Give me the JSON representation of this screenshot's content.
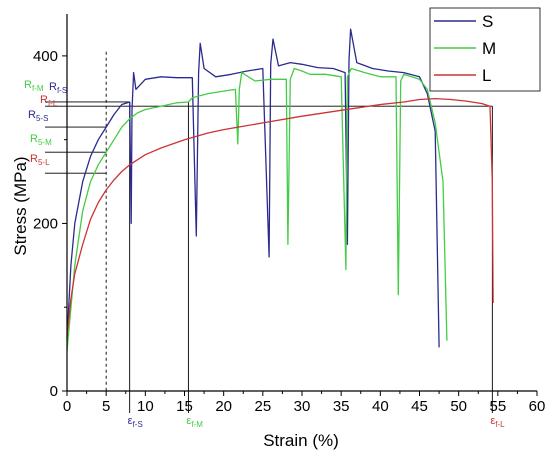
{
  "chart_data": {
    "type": "line",
    "xlabel": "Strain (%)",
    "ylabel": "Stress (MPa)",
    "xlim": [
      0,
      60
    ],
    "ylim": [
      0,
      450
    ],
    "x_ticks": [
      0,
      5,
      10,
      15,
      20,
      25,
      30,
      35,
      40,
      45,
      50,
      55,
      60
    ],
    "y_ticks": [
      0,
      200,
      400
    ],
    "legend_position": "top-right",
    "grid": false,
    "reference_line": {
      "x": 5,
      "style": "dashed"
    },
    "series": [
      {
        "name": "S",
        "color": "#2b2b8f",
        "points": [
          [
            0,
            62
          ],
          [
            0.5,
            150
          ],
          [
            1,
            200
          ],
          [
            2,
            250
          ],
          [
            3,
            280
          ],
          [
            4,
            300
          ],
          [
            5,
            315
          ],
          [
            6,
            330
          ],
          [
            7,
            342
          ],
          [
            8,
            345
          ],
          [
            8.2,
            200
          ],
          [
            8.3,
            335
          ],
          [
            8.5,
            380
          ],
          [
            8.8,
            360
          ],
          [
            10,
            372
          ],
          [
            12,
            375
          ],
          [
            14,
            374
          ],
          [
            16,
            374
          ],
          [
            16.5,
            185
          ],
          [
            16.8,
            380
          ],
          [
            17,
            415
          ],
          [
            17.5,
            385
          ],
          [
            19,
            375
          ],
          [
            21,
            378
          ],
          [
            23,
            382
          ],
          [
            25,
            385
          ],
          [
            25.8,
            160
          ],
          [
            26,
            390
          ],
          [
            26.3,
            420
          ],
          [
            27,
            388
          ],
          [
            28.5,
            392
          ],
          [
            30,
            390
          ],
          [
            32,
            386
          ],
          [
            34,
            385
          ],
          [
            35.5,
            380
          ],
          [
            35.8,
            175
          ],
          [
            36,
            395
          ],
          [
            36.2,
            432
          ],
          [
            37,
            392
          ],
          [
            39,
            385
          ],
          [
            41,
            382
          ],
          [
            43,
            380
          ],
          [
            45,
            375
          ],
          [
            46,
            355
          ],
          [
            47,
            310
          ],
          [
            47.5,
            52
          ]
        ]
      },
      {
        "name": "M",
        "color": "#44cc44",
        "points": [
          [
            0,
            48
          ],
          [
            1,
            150
          ],
          [
            2,
            215
          ],
          [
            3,
            250
          ],
          [
            4,
            270
          ],
          [
            5,
            285
          ],
          [
            6,
            300
          ],
          [
            7,
            315
          ],
          [
            8,
            325
          ],
          [
            9,
            332
          ],
          [
            10,
            336
          ],
          [
            12,
            340
          ],
          [
            14,
            344
          ],
          [
            15.5,
            345
          ],
          [
            16,
            350
          ],
          [
            18,
            355
          ],
          [
            20,
            358
          ],
          [
            21.5,
            360
          ],
          [
            21.8,
            295
          ],
          [
            22,
            360
          ],
          [
            22.3,
            380
          ],
          [
            24,
            370
          ],
          [
            26,
            372
          ],
          [
            28,
            372
          ],
          [
            28.2,
            175
          ],
          [
            28.5,
            372
          ],
          [
            29,
            385
          ],
          [
            30,
            382
          ],
          [
            31,
            378
          ],
          [
            33,
            378
          ],
          [
            35,
            375
          ],
          [
            35.6,
            145
          ],
          [
            35.8,
            375
          ],
          [
            36.3,
            385
          ],
          [
            38,
            380
          ],
          [
            40,
            375
          ],
          [
            42,
            375
          ],
          [
            42.3,
            115
          ],
          [
            42.6,
            370
          ],
          [
            43,
            378
          ],
          [
            45,
            372
          ],
          [
            46,
            360
          ],
          [
            47,
            320
          ],
          [
            48,
            250
          ],
          [
            48.5,
            60
          ]
        ]
      },
      {
        "name": "L",
        "color": "#cc3333",
        "points": [
          [
            0,
            65
          ],
          [
            0.5,
            110
          ],
          [
            1,
            140
          ],
          [
            2,
            175
          ],
          [
            3,
            205
          ],
          [
            4,
            225
          ],
          [
            5,
            240
          ],
          [
            6,
            252
          ],
          [
            7,
            262
          ],
          [
            8,
            270
          ],
          [
            10,
            282
          ],
          [
            12,
            290
          ],
          [
            15,
            300
          ],
          [
            18,
            308
          ],
          [
            20,
            312
          ],
          [
            25,
            320
          ],
          [
            30,
            328
          ],
          [
            35,
            335
          ],
          [
            40,
            342
          ],
          [
            43,
            345
          ],
          [
            45,
            348
          ],
          [
            47,
            349
          ],
          [
            49,
            348
          ],
          [
            51,
            346
          ],
          [
            53,
            343
          ],
          [
            54,
            340
          ],
          [
            54.3,
            250
          ],
          [
            54.4,
            105
          ]
        ]
      }
    ],
    "annotations": {
      "y_labels": [
        {
          "main": "R",
          "sub": "f-M",
          "color": "#44cc44",
          "y": 345
        },
        {
          "main": "R",
          "sub": "f-S",
          "color": "#2b2b8f",
          "y": 345
        },
        {
          "main": "R",
          "sub": "f-L",
          "color": "#cc3333",
          "y": 340
        },
        {
          "main": "R",
          "sub": "5-S",
          "color": "#2b2b8f",
          "y": 315
        },
        {
          "main": "R",
          "sub": "5-M",
          "color": "#44cc44",
          "y": 285
        },
        {
          "main": "R",
          "sub": "5-L",
          "color": "#cc3333",
          "y": 260
        }
      ],
      "x_labels": [
        {
          "main": "ε",
          "sub": "f-S",
          "color": "#2b2b8f",
          "x": 8
        },
        {
          "main": "ε",
          "sub": "f-M",
          "color": "#44cc44",
          "x": 15.5
        },
        {
          "main": "ε",
          "sub": "f-L",
          "color": "#cc3333",
          "x": 54.3
        }
      ]
    }
  }
}
